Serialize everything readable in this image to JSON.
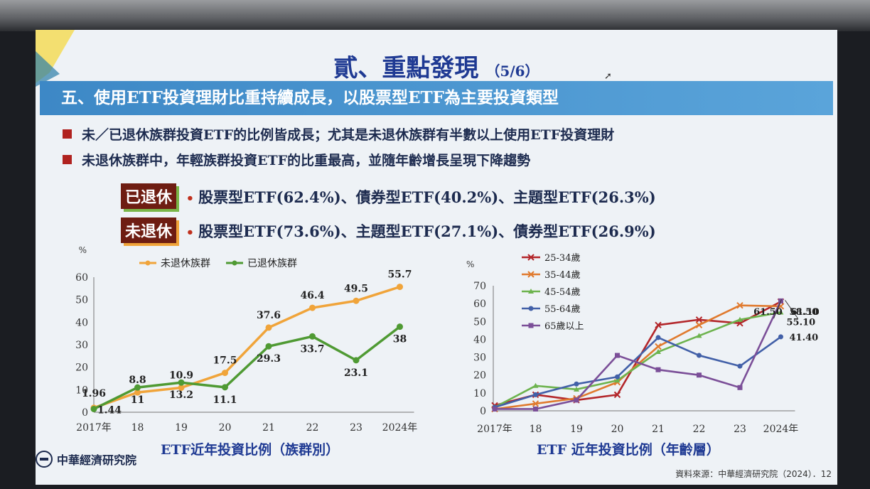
{
  "slide": {
    "title": "貳、重點發現",
    "page_indicator": "（5/6）",
    "banner": "五、使用ETF投資理財比重持續成長，以股票型ETF為主要投資類型",
    "bullets": [
      "未／已退休族群投資ETF的比例皆成長；尤其是未退休族群有半數以上使用ETF投資理財",
      "未退休族群中，年輕族群投資ETF的比重最高，並隨年齡增長呈現下降趨勢"
    ],
    "tags": {
      "retired_label": "已退休",
      "retired_text": "股票型ETF(62.4%)、債券型ETF(40.2%)、主題型ETF(26.3%)",
      "active_label": "未退休",
      "active_text": "股票型ETF(73.6%)、主題型ETF(27.1%)、債券型ETF(26.9%)",
      "dot": "•"
    },
    "logo_name": "中華經濟研究院",
    "source": "資料來源：中華經濟研究院（2024）．12",
    "colors": {
      "banner": "#3d88c6",
      "title": "#1f3a93",
      "tag_bg": "#6e1d12",
      "bullet_square": "#b0221f"
    }
  },
  "chart_data": [
    {
      "type": "line",
      "caption": "ETF近年投資比例（族群別）",
      "unit_label": "%",
      "categories": [
        "2017年",
        "18",
        "19",
        "20",
        "21",
        "22",
        "23",
        "2024年"
      ],
      "ylim": [
        0,
        60
      ],
      "yticks": [
        0,
        10,
        20,
        30,
        40,
        50,
        60
      ],
      "grid": false,
      "legend_position": "top",
      "series": [
        {
          "name": "未退休族群",
          "color": "#f0a43a",
          "values": [
            1.96,
            8.8,
            10.9,
            17.5,
            37.6,
            46.4,
            49.5,
            55.7
          ],
          "labels": [
            "1.96",
            "8.8",
            "10.9",
            "17.5",
            "37.6",
            "46.4",
            "49.5",
            "55.7"
          ]
        },
        {
          "name": "已退休族群",
          "color": "#4f9a33",
          "values": [
            1.44,
            11,
            13.2,
            11.1,
            29.3,
            33.7,
            23.1,
            38
          ],
          "labels": [
            "1.44",
            "11",
            "13.2",
            "11.1",
            "29.3",
            "33.7",
            "23.1",
            "38"
          ]
        }
      ]
    },
    {
      "type": "line",
      "caption": "ETF 近年投資比例（年齡層）",
      "unit_label": "%",
      "categories": [
        "2017年",
        "18",
        "19",
        "20",
        "21",
        "22",
        "23",
        "2024年"
      ],
      "ylim": [
        0,
        70
      ],
      "yticks": [
        0,
        10,
        20,
        30,
        40,
        50,
        60,
        70
      ],
      "grid": false,
      "legend_position": "top-left",
      "series": [
        {
          "name": "25-34歲",
          "color": "#b3262a",
          "marker": "x",
          "values": [
            3,
            9,
            6,
            9,
            48,
            51,
            49,
            61.1
          ]
        },
        {
          "name": "35-44歲",
          "color": "#e07a2e",
          "marker": "x",
          "values": [
            1,
            4,
            7,
            16,
            36,
            48,
            59,
            58.5
          ]
        },
        {
          "name": "45-54歲",
          "color": "#6db34e",
          "marker": "triangle",
          "values": [
            2,
            14,
            12,
            17,
            33,
            42,
            51,
            55.1
          ]
        },
        {
          "name": "55-64歲",
          "color": "#4260a8",
          "marker": "circle",
          "values": [
            2,
            9,
            15,
            19,
            41,
            31,
            25,
            41.4
          ]
        },
        {
          "name": "65歲以上",
          "color": "#7b4f98",
          "marker": "square",
          "values": [
            1,
            1,
            6,
            31,
            23,
            20,
            13,
            61.5
          ]
        }
      ],
      "end_labels": [
        "61.50",
        "61.10",
        "58.50",
        "55.10",
        "41.40"
      ]
    }
  ]
}
